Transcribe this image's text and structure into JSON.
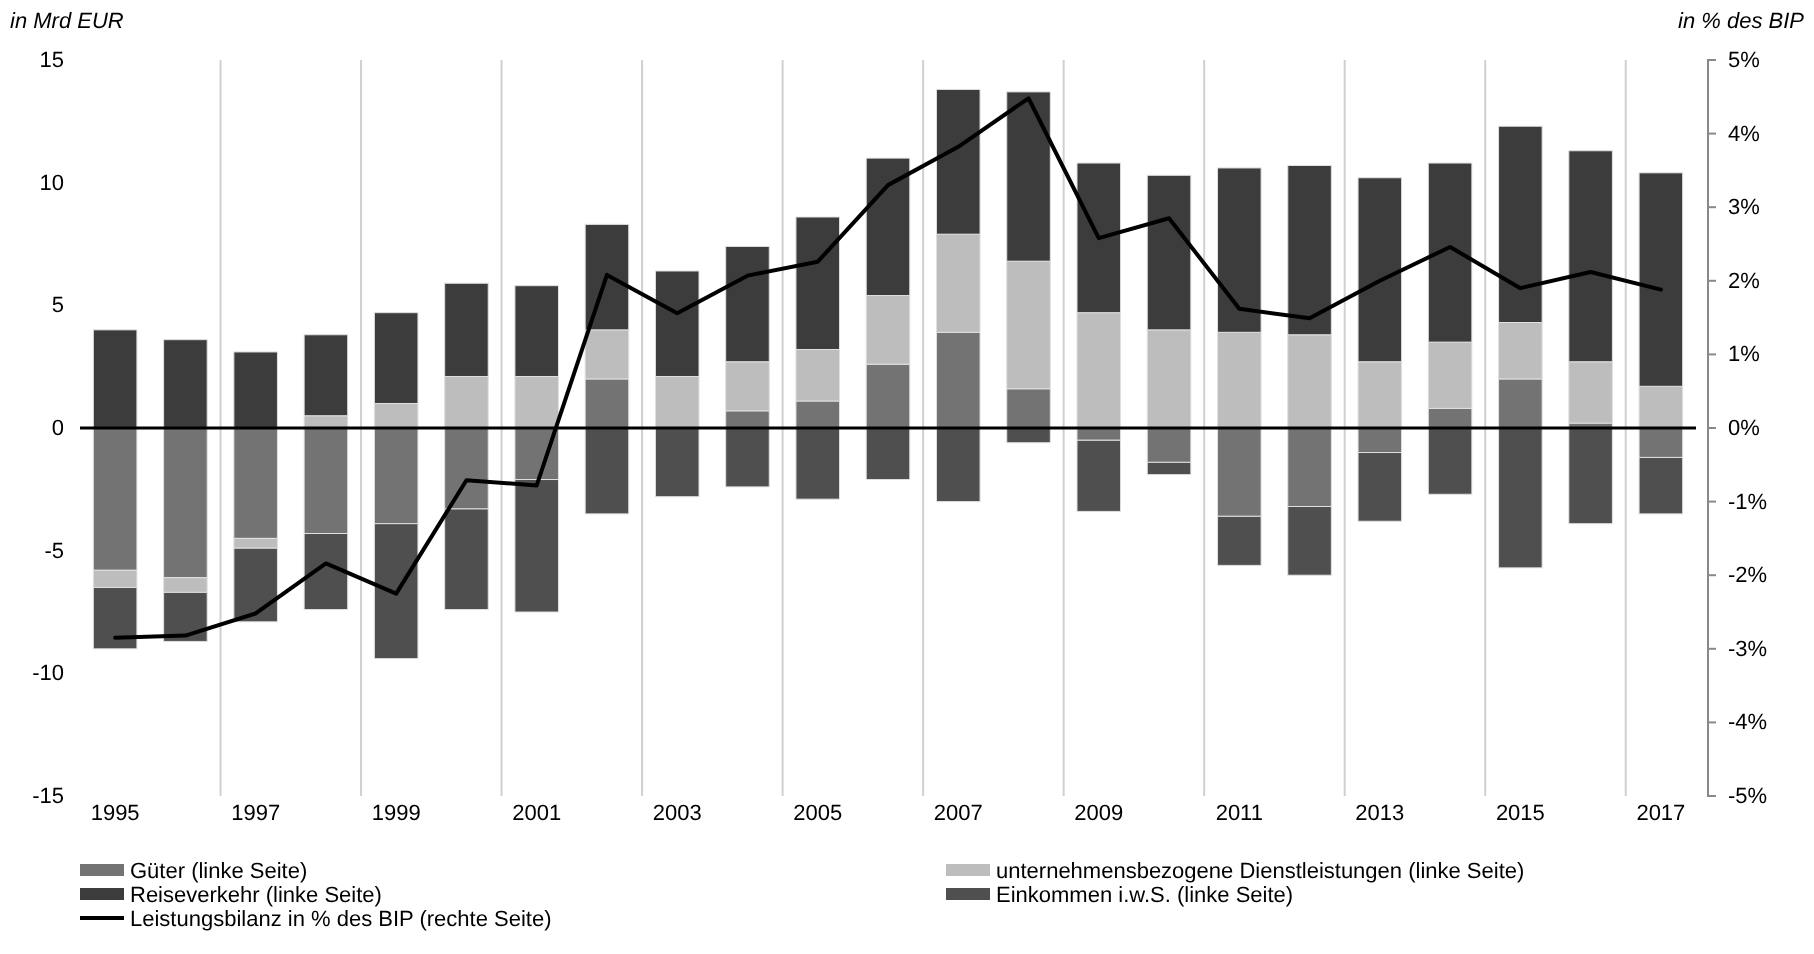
{
  "chart_data": {
    "type": "bar",
    "stacked": true,
    "ylabel": "in Mrd EUR",
    "y2label": "in % des BIP",
    "categories": [
      "1995",
      null,
      "1997",
      null,
      "1999",
      null,
      "2001",
      null,
      "2003",
      null,
      "2005",
      null,
      "2007",
      null,
      "2009",
      null,
      "2011",
      null,
      "2013",
      null,
      "2015",
      null,
      "2017"
    ],
    "ylim": [
      -15,
      15
    ],
    "yticks": [
      -15,
      -10,
      -5,
      0,
      5,
      10,
      15
    ],
    "y2lim": [
      -5,
      5
    ],
    "y2ticks": [
      {
        "value": -5,
        "label": "-5%"
      },
      {
        "value": -4,
        "label": "-4%"
      },
      {
        "value": -3,
        "label": "-3%"
      },
      {
        "value": -2,
        "label": "-2%"
      },
      {
        "value": -1,
        "label": "-1%"
      },
      {
        "value": 0,
        "label": "0%"
      },
      {
        "value": 1,
        "label": "1%"
      },
      {
        "value": 2,
        "label": "2%"
      },
      {
        "value": 3,
        "label": "3%"
      },
      {
        "value": 4,
        "label": "4%"
      },
      {
        "value": 5,
        "label": "5%"
      }
    ],
    "grid": "x",
    "legend": "bottom",
    "series": [
      {
        "name": "Güter (linke Seite)",
        "color": "#737373",
        "values": [
          -5.8,
          -6.1,
          -4.5,
          -4.3,
          -3.9,
          -3.3,
          -2.1,
          2.0,
          0,
          0.7,
          1.1,
          2.6,
          3.9,
          1.6,
          -0.5,
          -1.4,
          -3.6,
          -3.2,
          -1.0,
          0.8,
          2.0,
          0.2,
          -1.2
        ]
      },
      {
        "name": "unternehmensbezogene Dienstleistungen (linke Seite)",
        "color": "#bdbdbd",
        "values": [
          -0.7,
          -0.6,
          -0.4,
          0.5,
          1.0,
          2.1,
          2.1,
          2.0,
          2.1,
          2.0,
          2.1,
          2.8,
          4.0,
          5.2,
          4.7,
          4.0,
          3.9,
          3.8,
          2.7,
          2.7,
          2.3,
          2.5,
          1.7
        ]
      },
      {
        "name": "Reiseverkehr (linke Seite)",
        "color": "#3c3c3c",
        "values": [
          4.0,
          3.6,
          3.1,
          3.3,
          3.7,
          3.8,
          3.7,
          4.3,
          4.3,
          4.7,
          5.4,
          5.6,
          5.9,
          6.9,
          6.1,
          6.3,
          6.7,
          6.9,
          7.5,
          7.3,
          8.0,
          8.6,
          8.7
        ]
      },
      {
        "name": "Einkommen i.w.S. (linke Seite)",
        "color": "#4f4f4f",
        "values": [
          -2.5,
          -2.0,
          -3.0,
          -3.1,
          -5.5,
          -4.1,
          -5.4,
          -3.5,
          -2.8,
          -2.4,
          -2.9,
          -2.1,
          -3.0,
          -0.6,
          -2.9,
          -0.5,
          -2.0,
          -2.8,
          -2.8,
          -2.7,
          -5.7,
          -3.9,
          -2.3
        ]
      },
      {
        "name": "Leistungsbilanz in % des BIP (rechte Seite)",
        "type": "line",
        "axis": "y2",
        "color": "#000000",
        "values": [
          -2.85,
          -2.82,
          -2.52,
          -1.84,
          -2.25,
          -0.71,
          -0.78,
          2.08,
          1.56,
          2.07,
          2.26,
          3.3,
          3.82,
          4.48,
          2.58,
          2.85,
          1.62,
          1.49,
          2.0,
          2.46,
          1.9,
          2.12,
          1.88
        ]
      }
    ]
  }
}
